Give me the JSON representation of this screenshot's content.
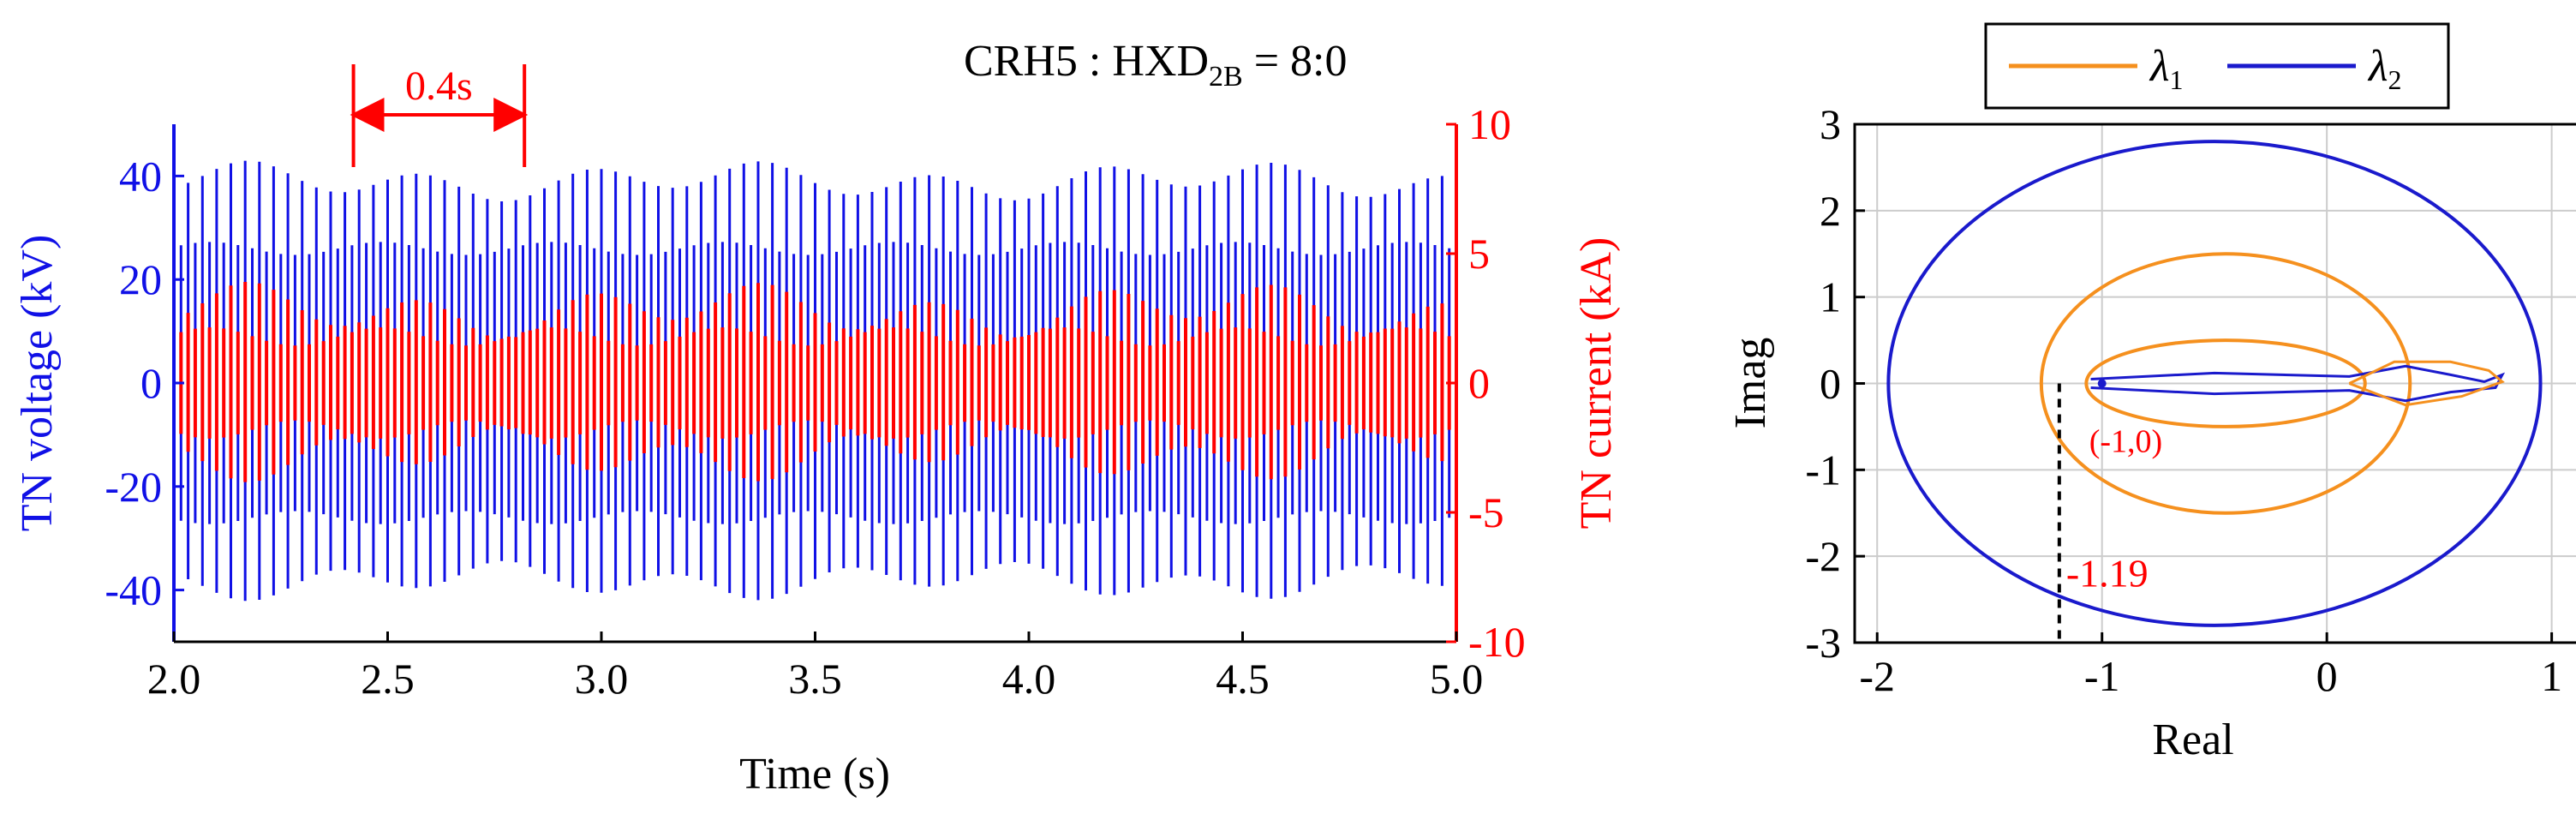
{
  "colors": {
    "voltage": "#1010e6",
    "current": "#ff0000",
    "lambda1": "#f5901e",
    "lambda2": "#1a1acc",
    "annotation": "#ff0000",
    "grid": "#cccccc",
    "axis": "#000000"
  },
  "chart_data": [
    {
      "type": "line",
      "title": "CRH5 : HXD",
      "title_subscript": "2B",
      "title_suffix": " = 8:0",
      "xlabel": "Time (s)",
      "ylabel_left": "TN voltage (kV)",
      "ylabel_right": "TN current (kA)",
      "xlim": [
        2.0,
        5.0
      ],
      "ylim_left": [
        -50,
        50
      ],
      "ylim_right": [
        -10,
        10
      ],
      "xticks": [
        "2.0",
        "2.5",
        "3.0",
        "3.5",
        "4.0",
        "4.5",
        "5.0"
      ],
      "xtick_values": [
        2.0,
        2.5,
        3.0,
        3.5,
        4.0,
        4.5,
        5.0
      ],
      "yticks_left": [
        "-40",
        "-20",
        "0",
        "20",
        "40"
      ],
      "ytick_values_left": [
        -40,
        -20,
        0,
        20,
        40
      ],
      "yticks_right": [
        "-10",
        "-5",
        "0",
        "5",
        "10"
      ],
      "ytick_values_right": [
        -10,
        -5,
        0,
        5,
        10
      ],
      "series": [
        {
          "name": "TN voltage",
          "axis": "left",
          "mean_amplitude": 39,
          "modulation_amplitude": 2.5,
          "modulation_period": 0.4,
          "inner_band": 26,
          "cycles_per_period": 12
        },
        {
          "name": "TN current",
          "axis": "right",
          "mean_amplitude": 2.8,
          "modulation_amplitude": 0.7,
          "modulation_period": 0.4,
          "inner_band": 1.8,
          "cycles_per_period": 12
        }
      ],
      "annotation": {
        "label": "0.4s",
        "x_start": 2.42,
        "x_end": 2.82
      }
    },
    {
      "type": "line",
      "legend": [
        {
          "label": "λ",
          "subscript": "1",
          "series": "lambda1"
        },
        {
          "label": "λ",
          "subscript": "2",
          "series": "lambda2"
        }
      ],
      "xlabel": "Real",
      "ylabel": "Imag",
      "xlim": [
        -2.1,
        1.15
      ],
      "ylim": [
        -3,
        3
      ],
      "xticks": [
        "-2",
        "-1",
        "0",
        "1"
      ],
      "xtick_values": [
        -2,
        -1,
        0,
        1
      ],
      "yticks": [
        "-3",
        "-2",
        "-1",
        "0",
        "1",
        "2",
        "3"
      ],
      "ytick_values": [
        -3,
        -2,
        -1,
        0,
        1,
        2,
        3
      ],
      "lambda1_outer_loop": {
        "center": [
          -0.45,
          0
        ],
        "radius_real": 0.82,
        "radius_imag": 1.5
      },
      "lambda1_inner_loop": {
        "center": [
          -0.45,
          0
        ],
        "radius_real": 0.62,
        "radius_imag": 0.5
      },
      "lambda2_loop": {
        "center": [
          -0.5,
          0
        ],
        "radius_real": 1.45,
        "radius_imag": 2.8
      },
      "critical_point_label": "(-1,0)",
      "crossing_label": "-1.19",
      "crossing_value": -1.19
    }
  ]
}
